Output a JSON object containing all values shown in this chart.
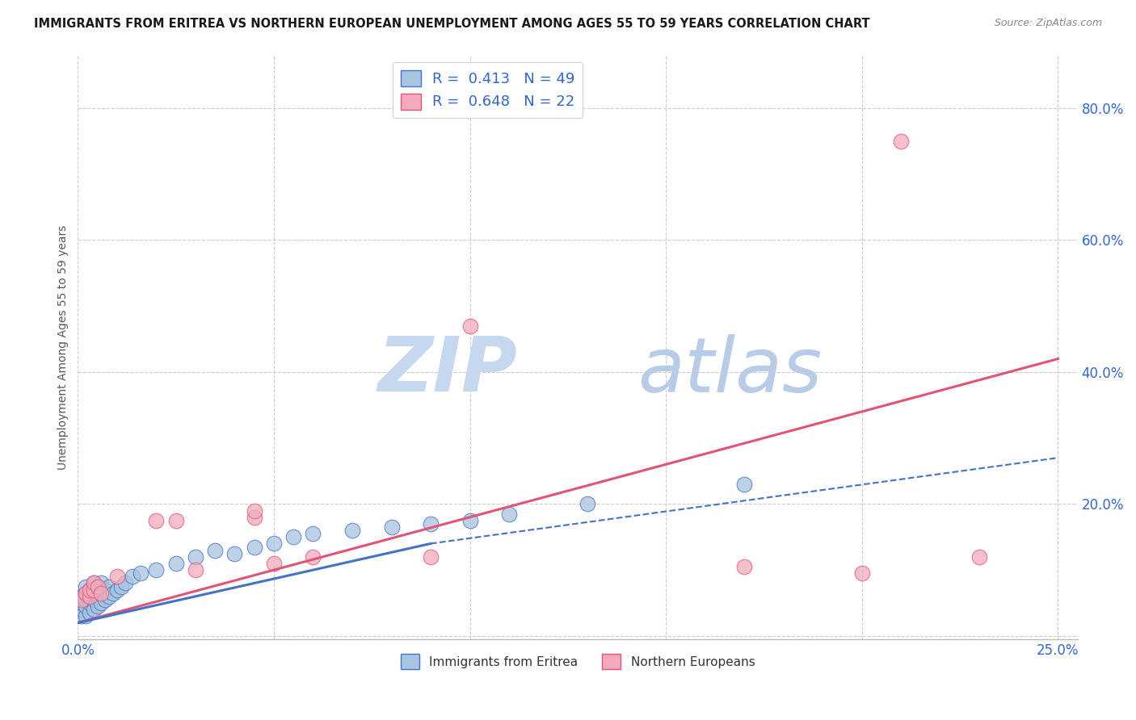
{
  "title": "IMMIGRANTS FROM ERITREA VS NORTHERN EUROPEAN UNEMPLOYMENT AMONG AGES 55 TO 59 YEARS CORRELATION CHART",
  "source": "Source: ZipAtlas.com",
  "ylabel": "Unemployment Among Ages 55 to 59 years",
  "xlim": [
    0.0,
    0.255
  ],
  "ylim": [
    -0.005,
    0.88
  ],
  "xticks": [
    0.0,
    0.05,
    0.1,
    0.15,
    0.2,
    0.25
  ],
  "xticklabels": [
    "0.0%",
    "",
    "",
    "",
    "",
    "25.0%"
  ],
  "ytick_positions": [
    0.0,
    0.2,
    0.4,
    0.6,
    0.8
  ],
  "ytick_labels": [
    "",
    "20.0%",
    "40.0%",
    "60.0%",
    "80.0%"
  ],
  "legend_blue_label": "R =  0.413   N = 49",
  "legend_pink_label": "R =  0.648   N = 22",
  "legend_blue_color": "#a8c4e0",
  "legend_pink_color": "#f2aabc",
  "trend_blue_color": "#4472c4",
  "trend_pink_color": "#e05575",
  "watermark_zip_color": "#c5d8f0",
  "watermark_atlas_color": "#b8cce8",
  "grid_color": "#cccccc",
  "bg_color": "#ffffff",
  "blue_scatter_x": [
    0.001,
    0.001,
    0.001,
    0.001,
    0.002,
    0.002,
    0.002,
    0.002,
    0.002,
    0.003,
    0.003,
    0.003,
    0.003,
    0.004,
    0.004,
    0.004,
    0.004,
    0.005,
    0.005,
    0.005,
    0.006,
    0.006,
    0.006,
    0.007,
    0.007,
    0.008,
    0.008,
    0.009,
    0.01,
    0.011,
    0.012,
    0.014,
    0.016,
    0.02,
    0.025,
    0.03,
    0.035,
    0.04,
    0.045,
    0.05,
    0.055,
    0.06,
    0.07,
    0.08,
    0.09,
    0.1,
    0.11,
    0.13,
    0.17
  ],
  "blue_scatter_y": [
    0.03,
    0.04,
    0.05,
    0.06,
    0.03,
    0.045,
    0.055,
    0.065,
    0.075,
    0.035,
    0.05,
    0.06,
    0.07,
    0.04,
    0.055,
    0.065,
    0.08,
    0.045,
    0.06,
    0.075,
    0.05,
    0.065,
    0.08,
    0.055,
    0.07,
    0.06,
    0.075,
    0.065,
    0.07,
    0.075,
    0.08,
    0.09,
    0.095,
    0.1,
    0.11,
    0.12,
    0.13,
    0.125,
    0.135,
    0.14,
    0.15,
    0.155,
    0.16,
    0.165,
    0.17,
    0.175,
    0.185,
    0.2,
    0.23
  ],
  "pink_scatter_x": [
    0.001,
    0.002,
    0.003,
    0.003,
    0.004,
    0.004,
    0.005,
    0.006,
    0.01,
    0.02,
    0.025,
    0.03,
    0.045,
    0.045,
    0.05,
    0.06,
    0.09,
    0.1,
    0.17,
    0.2,
    0.21,
    0.23
  ],
  "pink_scatter_y": [
    0.055,
    0.065,
    0.06,
    0.07,
    0.07,
    0.08,
    0.075,
    0.065,
    0.09,
    0.175,
    0.175,
    0.1,
    0.18,
    0.19,
    0.11,
    0.12,
    0.12,
    0.47,
    0.105,
    0.095,
    0.75,
    0.12
  ],
  "blue_solid_trend_x": [
    0.0,
    0.09
  ],
  "blue_solid_trend_y": [
    0.02,
    0.14
  ],
  "blue_dash_trend_x": [
    0.09,
    0.25
  ],
  "blue_dash_trend_y": [
    0.14,
    0.27
  ],
  "pink_solid_trend_x": [
    0.0,
    0.25
  ],
  "pink_solid_trend_y": [
    0.02,
    0.42
  ],
  "bottom_legend_label_blue": "Immigrants from Eritrea",
  "bottom_legend_label_pink": "Northern Europeans"
}
